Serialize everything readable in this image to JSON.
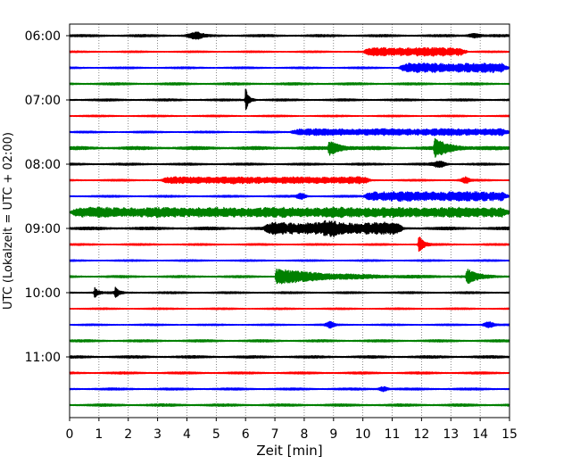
{
  "chart_data": {
    "type": "line",
    "chart_kind": "helicorder (seismogram drum plot)",
    "xlabel": "Zeit  [min]",
    "ylabel": "UTC (Lokalzeit = UTC + 02:00)",
    "xlim": [
      0,
      15
    ],
    "x_ticks": [
      0,
      1,
      2,
      3,
      4,
      5,
      6,
      7,
      8,
      9,
      10,
      11,
      12,
      13,
      14,
      15
    ],
    "x_grid": "dotted vertical lines at each minute",
    "y_ticks": [
      "06:00",
      "07:00",
      "08:00",
      "09:00",
      "10:00",
      "11:00"
    ],
    "trace_interval_min": 15,
    "trace_colors": [
      "#000000",
      "#ff0000",
      "#0000ff",
      "#008000"
    ],
    "traces": [
      {
        "start": "06:00",
        "color": "#000000",
        "noise": 1.3,
        "events": [
          {
            "t": 4.3,
            "amp": 3,
            "dur": 0.6,
            "kind": "burst"
          },
          {
            "t": 13.8,
            "amp": 2,
            "dur": 0.5,
            "kind": "burst"
          }
        ]
      },
      {
        "start": "06:15",
        "color": "#ff0000",
        "noise": 0.9,
        "events": [
          {
            "t": 10.0,
            "amp": 4,
            "dur": 3.6,
            "kind": "tremor"
          }
        ]
      },
      {
        "start": "06:30",
        "color": "#0000ff",
        "noise": 1.0,
        "events": [
          {
            "t": 11.2,
            "amp": 4.5,
            "dur": 3.8,
            "kind": "tremor"
          }
        ]
      },
      {
        "start": "06:45",
        "color": "#008000",
        "noise": 1.3,
        "events": []
      },
      {
        "start": "07:00",
        "color": "#000000",
        "noise": 1.2,
        "events": [
          {
            "t": 6.0,
            "amp": 13,
            "dur": 0.35,
            "kind": "spike"
          }
        ]
      },
      {
        "start": "07:15",
        "color": "#ff0000",
        "noise": 0.9,
        "events": []
      },
      {
        "start": "07:30",
        "color": "#0000ff",
        "noise": 1.0,
        "events": [
          {
            "t": 7.5,
            "amp": 3,
            "dur": 7.5,
            "kind": "tremor"
          }
        ]
      },
      {
        "start": "07:45",
        "color": "#008000",
        "noise": 1.8,
        "events": [
          {
            "t": 8.8,
            "amp": 8,
            "dur": 0.6,
            "kind": "quake"
          },
          {
            "t": 12.4,
            "amp": 9,
            "dur": 0.9,
            "kind": "quake"
          }
        ]
      },
      {
        "start": "08:00",
        "color": "#000000",
        "noise": 1.2,
        "events": [
          {
            "t": 12.6,
            "amp": 3,
            "dur": 0.5,
            "kind": "burst"
          }
        ]
      },
      {
        "start": "08:15",
        "color": "#ff0000",
        "noise": 1.0,
        "events": [
          {
            "t": 3.1,
            "amp": 3,
            "dur": 7.2,
            "kind": "tremor"
          },
          {
            "t": 13.5,
            "amp": 3,
            "dur": 0.3,
            "kind": "burst"
          }
        ]
      },
      {
        "start": "08:30",
        "color": "#0000ff",
        "noise": 1.1,
        "events": [
          {
            "t": 10.0,
            "amp": 4.5,
            "dur": 5.0,
            "kind": "tremor"
          },
          {
            "t": 7.9,
            "amp": 3,
            "dur": 0.3,
            "kind": "burst"
          }
        ]
      },
      {
        "start": "08:45",
        "color": "#008000",
        "noise": 1.4,
        "events": [
          {
            "t": 0.0,
            "amp": 4.5,
            "dur": 15.0,
            "kind": "tremor"
          }
        ]
      },
      {
        "start": "09:00",
        "color": "#000000",
        "noise": 1.6,
        "events": [
          {
            "t": 6.6,
            "amp": 5.5,
            "dur": 4.8,
            "kind": "tremor"
          },
          {
            "t": 8.9,
            "amp": 3,
            "dur": 0.6,
            "kind": "burst"
          }
        ]
      },
      {
        "start": "09:15",
        "color": "#ff0000",
        "noise": 1.0,
        "events": [
          {
            "t": 11.9,
            "amp": 11,
            "dur": 0.45,
            "kind": "spike"
          }
        ]
      },
      {
        "start": "09:30",
        "color": "#0000ff",
        "noise": 0.9,
        "events": []
      },
      {
        "start": "09:45",
        "color": "#008000",
        "noise": 1.2,
        "events": [
          {
            "t": 7.0,
            "amp": 8,
            "dur": 3.5,
            "kind": "quake"
          },
          {
            "t": 13.5,
            "amp": 8,
            "dur": 0.5,
            "kind": "quake"
          }
        ]
      },
      {
        "start": "10:00",
        "color": "#000000",
        "noise": 1.1,
        "events": [
          {
            "t": 0.85,
            "amp": 7,
            "dur": 0.3,
            "kind": "spike"
          },
          {
            "t": 1.55,
            "amp": 6,
            "dur": 0.35,
            "kind": "spike"
          }
        ]
      },
      {
        "start": "10:15",
        "color": "#ff0000",
        "noise": 0.9,
        "events": []
      },
      {
        "start": "10:30",
        "color": "#0000ff",
        "noise": 0.9,
        "events": [
          {
            "t": 8.9,
            "amp": 3,
            "dur": 0.3,
            "kind": "burst"
          },
          {
            "t": 14.3,
            "amp": 3,
            "dur": 0.4,
            "kind": "burst"
          }
        ]
      },
      {
        "start": "10:45",
        "color": "#008000",
        "noise": 1.3,
        "events": []
      },
      {
        "start": "11:00",
        "color": "#000000",
        "noise": 1.4,
        "events": []
      },
      {
        "start": "11:15",
        "color": "#ff0000",
        "noise": 1.2,
        "events": []
      },
      {
        "start": "11:30",
        "color": "#0000ff",
        "noise": 1.2,
        "events": [
          {
            "t": 10.7,
            "amp": 2.5,
            "dur": 0.3,
            "kind": "burst"
          }
        ]
      },
      {
        "start": "11:45",
        "color": "#008000",
        "noise": 1.4,
        "events": []
      }
    ]
  }
}
